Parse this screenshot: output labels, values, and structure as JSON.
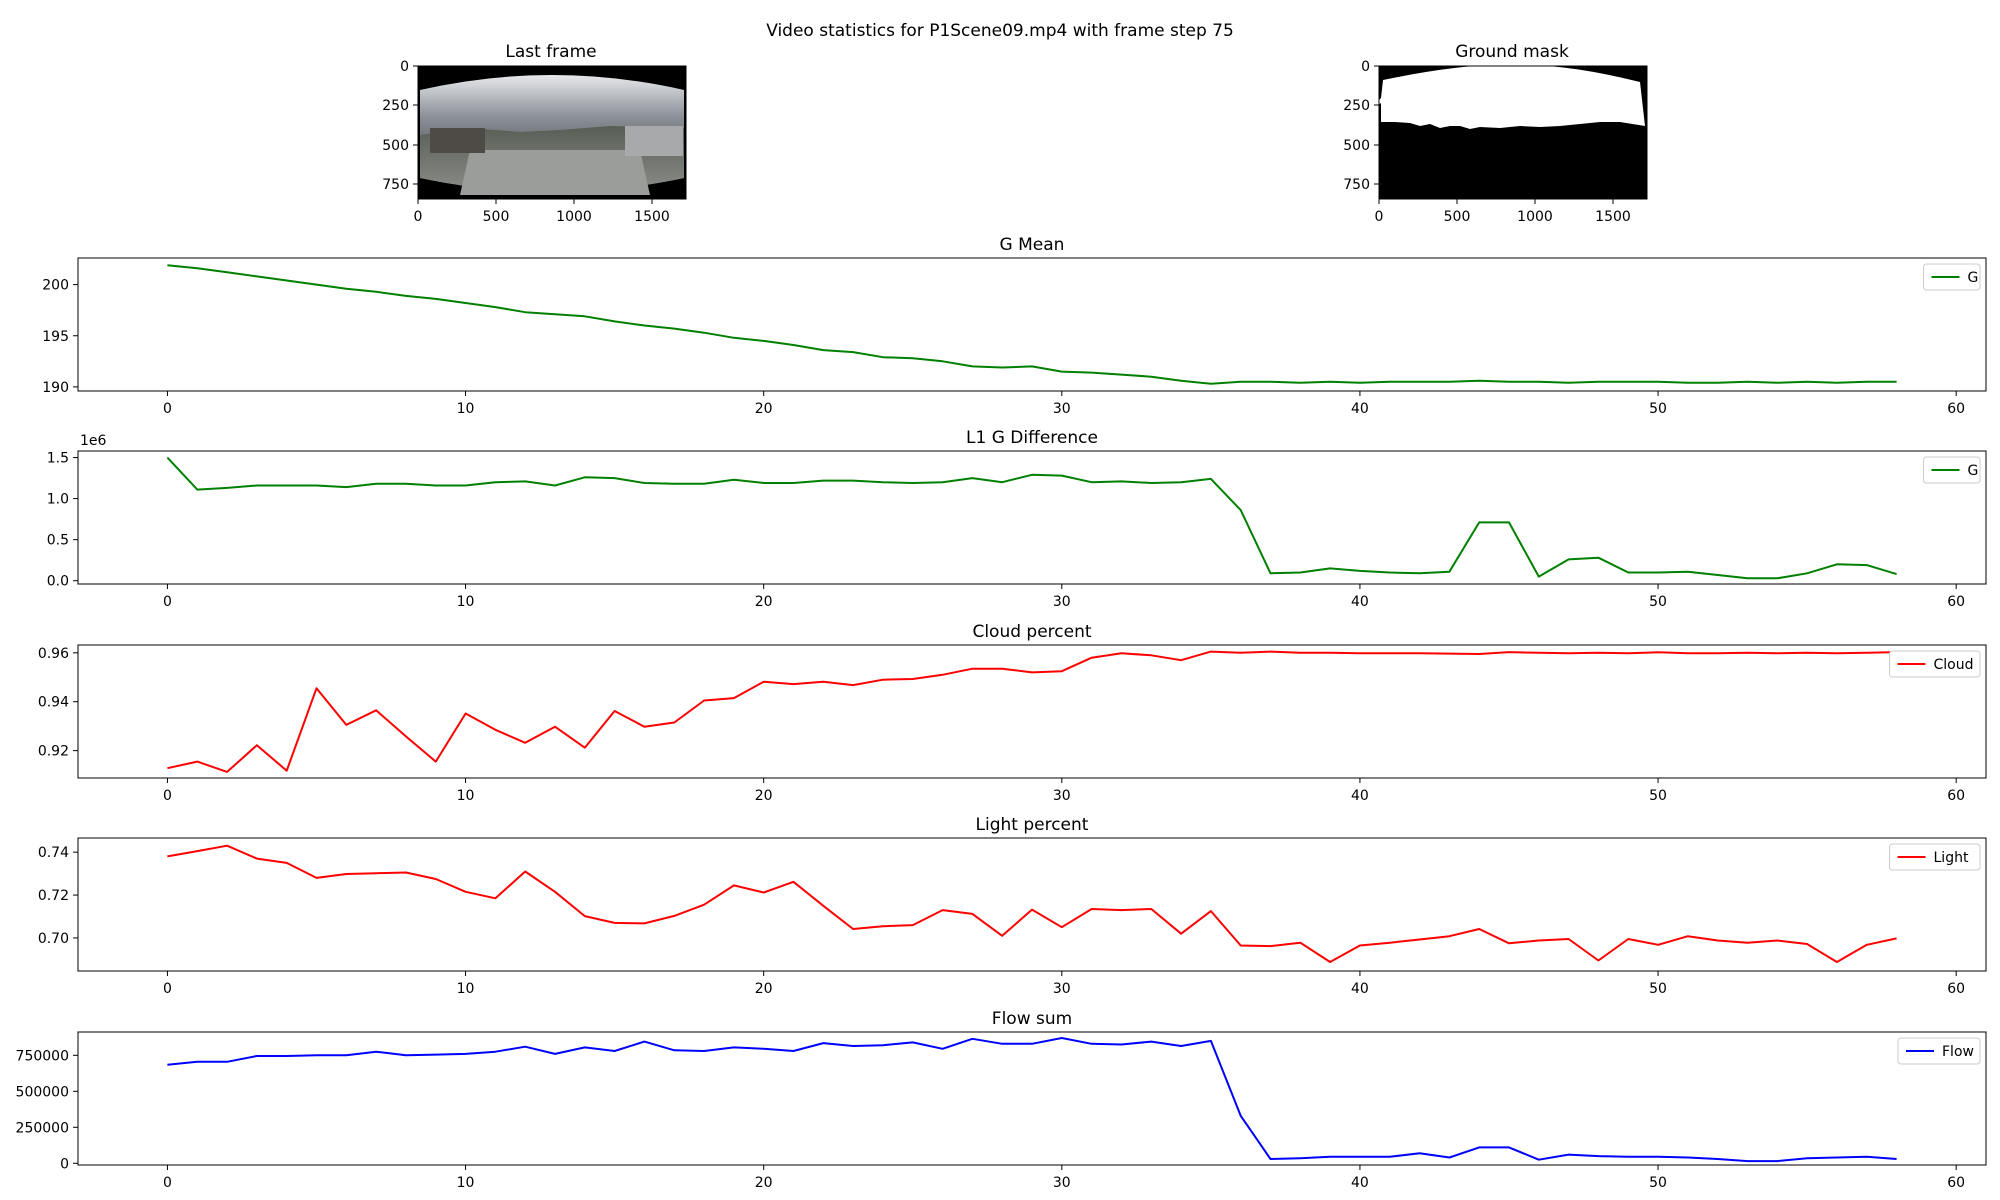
{
  "suptitle": "Video statistics for P1Scene09.mp4 with frame step 75",
  "images": [
    {
      "title": "Last frame",
      "xticks": [
        "0",
        "500",
        "1000",
        "1500"
      ],
      "yticks": [
        "0",
        "250",
        "500",
        "750"
      ]
    },
    {
      "title": "Ground mask",
      "xticks": [
        "0",
        "500",
        "1000",
        "1500"
      ],
      "yticks": [
        "0",
        "250",
        "500",
        "750"
      ]
    }
  ],
  "colors": {
    "green": "#008000",
    "red": "#ff0000",
    "blue": "#0000ff"
  },
  "chart_data": [
    {
      "type": "line",
      "title": "G Mean",
      "xlim": [
        -3,
        61
      ],
      "ylim": [
        189.6,
        202.6
      ],
      "xticks": [
        0,
        10,
        20,
        30,
        40,
        50,
        60
      ],
      "yticks": [
        190,
        195,
        200
      ],
      "legend": "top-right",
      "series": [
        {
          "name": "G",
          "color": "#008000",
          "values": [
            201.9,
            201.6,
            201.2,
            200.8,
            200.4,
            200.0,
            199.6,
            199.3,
            198.9,
            198.6,
            198.2,
            197.8,
            197.3,
            197.1,
            196.9,
            196.4,
            196.0,
            195.7,
            195.3,
            194.8,
            194.5,
            194.1,
            193.6,
            193.4,
            192.9,
            192.8,
            192.5,
            192.0,
            191.9,
            192.0,
            191.5,
            191.4,
            191.2,
            191.0,
            190.6,
            190.3,
            190.5,
            190.5,
            190.4,
            190.5,
            190.4,
            190.5,
            190.5,
            190.5,
            190.6,
            190.5,
            190.5,
            190.4,
            190.5,
            190.5,
            190.5,
            190.4,
            190.4,
            190.5,
            190.4,
            190.5,
            190.4,
            190.5,
            190.5
          ]
        }
      ]
    },
    {
      "type": "line",
      "title": "L1 G Difference",
      "offset_label": "1e6",
      "xlim": [
        -3,
        61
      ],
      "ylim": [
        -0.04,
        1.58
      ],
      "xticks": [
        0,
        10,
        20,
        30,
        40,
        50,
        60
      ],
      "yticks": [
        0.0,
        0.5,
        1.0,
        1.5
      ],
      "ytick_labels": [
        "0.0",
        "0.5",
        "1.0",
        "1.5"
      ],
      "legend": "top-right",
      "series": [
        {
          "name": "G",
          "color": "#008000",
          "values": [
            1.5,
            1.11,
            1.13,
            1.16,
            1.16,
            1.16,
            1.14,
            1.18,
            1.18,
            1.16,
            1.16,
            1.2,
            1.21,
            1.16,
            1.26,
            1.25,
            1.19,
            1.18,
            1.18,
            1.23,
            1.19,
            1.19,
            1.22,
            1.22,
            1.2,
            1.19,
            1.2,
            1.25,
            1.2,
            1.29,
            1.28,
            1.2,
            1.21,
            1.19,
            1.2,
            1.24,
            0.86,
            0.09,
            0.1,
            0.15,
            0.12,
            0.1,
            0.09,
            0.11,
            0.71,
            0.71,
            0.05,
            0.26,
            0.28,
            0.1,
            0.1,
            0.11,
            0.07,
            0.03,
            0.03,
            0.09,
            0.2,
            0.19,
            0.08
          ]
        }
      ]
    },
    {
      "type": "line",
      "title": "Cloud percent",
      "xlim": [
        -3,
        61
      ],
      "ylim": [
        0.9088,
        0.9632
      ],
      "xticks": [
        0,
        10,
        20,
        30,
        40,
        50,
        60
      ],
      "yticks": [
        0.92,
        0.94,
        0.96
      ],
      "ytick_labels": [
        "0.92",
        "0.94",
        "0.96"
      ],
      "legend": "top-right",
      "series": [
        {
          "name": "Cloud",
          "color": "#ff0000",
          "values": [
            0.9128,
            0.9155,
            0.9113,
            0.9222,
            0.9118,
            0.9455,
            0.9305,
            0.9365,
            0.9258,
            0.9155,
            0.9352,
            0.9285,
            0.9232,
            0.9298,
            0.9212,
            0.9362,
            0.9298,
            0.9315,
            0.9405,
            0.9415,
            0.9482,
            0.9472,
            0.9482,
            0.9468,
            0.949,
            0.9493,
            0.951,
            0.9535,
            0.9535,
            0.952,
            0.9525,
            0.958,
            0.9598,
            0.959,
            0.957,
            0.9605,
            0.96,
            0.9605,
            0.96,
            0.96,
            0.9598,
            0.9598,
            0.9598,
            0.9597,
            0.9595,
            0.9603,
            0.96,
            0.9598,
            0.96,
            0.9598,
            0.9602,
            0.9598,
            0.9598,
            0.96,
            0.9598,
            0.96,
            0.9598,
            0.96,
            0.9603
          ]
        }
      ]
    },
    {
      "type": "line",
      "title": "Light percent",
      "xlim": [
        -3,
        61
      ],
      "ylim": [
        0.6846,
        0.7466
      ],
      "xticks": [
        0,
        10,
        20,
        30,
        40,
        50,
        60
      ],
      "yticks": [
        0.7,
        0.72,
        0.74
      ],
      "ytick_labels": [
        "0.70",
        "0.72",
        "0.74"
      ],
      "legend": "top-right",
      "series": [
        {
          "name": "Light",
          "color": "#ff0000",
          "values": [
            0.738,
            0.7405,
            0.743,
            0.737,
            0.735,
            0.728,
            0.7298,
            0.7302,
            0.7305,
            0.7275,
            0.7215,
            0.7185,
            0.731,
            0.7215,
            0.7102,
            0.707,
            0.7068,
            0.7103,
            0.7155,
            0.7245,
            0.7212,
            0.7262,
            0.715,
            0.7042,
            0.7055,
            0.706,
            0.713,
            0.7112,
            0.701,
            0.7132,
            0.705,
            0.7135,
            0.713,
            0.7135,
            0.702,
            0.7125,
            0.6965,
            0.6962,
            0.6978,
            0.6888,
            0.6965,
            0.6978,
            0.6993,
            0.7008,
            0.7042,
            0.6975,
            0.6988,
            0.6995,
            0.6895,
            0.6995,
            0.6968,
            0.7008,
            0.6988,
            0.6978,
            0.6988,
            0.6972,
            0.6888,
            0.6968,
            0.6998
          ]
        }
      ]
    },
    {
      "type": "line",
      "title": "Flow sum",
      "xlim": [
        -3,
        61
      ],
      "ylim": [
        -12000,
        912000
      ],
      "xticks": [
        0,
        10,
        20,
        30,
        40,
        50,
        60
      ],
      "yticks": [
        0,
        250000,
        500000,
        750000
      ],
      "ytick_labels": [
        "0",
        "250000",
        "500000",
        "750000"
      ],
      "legend": "top-right",
      "series": [
        {
          "name": "Flow",
          "color": "#0000ff",
          "values": [
            685000,
            705000,
            705000,
            745000,
            745000,
            750000,
            750000,
            775000,
            750000,
            755000,
            760000,
            775000,
            810000,
            760000,
            805000,
            780000,
            845000,
            785000,
            780000,
            805000,
            795000,
            780000,
            835000,
            815000,
            820000,
            840000,
            795000,
            865000,
            830000,
            830000,
            870000,
            830000,
            825000,
            845000,
            815000,
            850000,
            330000,
            30000,
            35000,
            45000,
            45000,
            45000,
            70000,
            40000,
            110000,
            110000,
            25000,
            60000,
            50000,
            45000,
            45000,
            40000,
            30000,
            15000,
            15000,
            35000,
            40000,
            45000,
            30000
          ]
        }
      ]
    }
  ]
}
